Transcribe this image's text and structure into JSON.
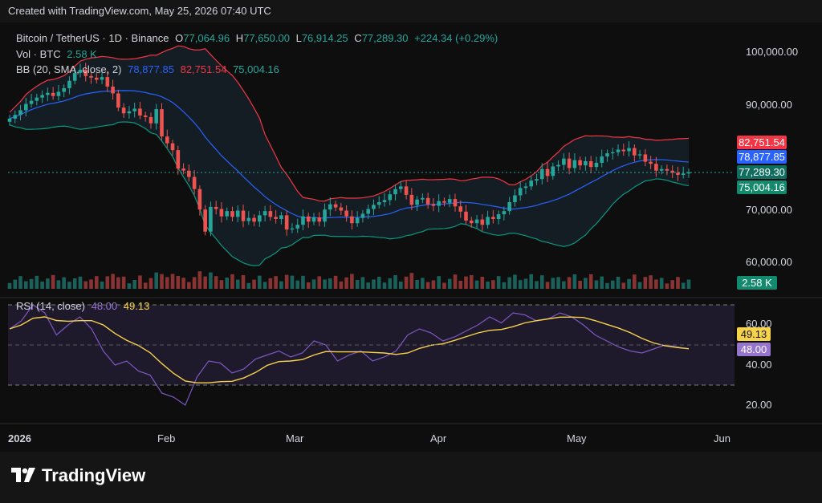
{
  "caption": "Created with TradingView.com, May 25, 2026 07:40 UTC",
  "symbol": {
    "title": "Bitcoin / TetherUS · 1D · Binance",
    "o_label": "O",
    "o": "77,064.96",
    "h_label": "H",
    "h": "77,650.00",
    "l_label": "L",
    "l": "76,914.25",
    "c_label": "C",
    "c": "77,289.30",
    "change": "+224.34 (+0.29%)"
  },
  "vol": {
    "label": "Vol · BTC",
    "value": "2.58 K"
  },
  "bb": {
    "label": "BB (20, SMA, close, 2)",
    "basis": "78,877.85",
    "upper": "82,751.54",
    "lower": "75,004.16"
  },
  "rsi": {
    "label": "RSI (14, close)",
    "rsi": "48.00",
    "ma": "49.13"
  },
  "price_tags": {
    "upper": "82,751.54",
    "basis": "78,877.85",
    "last": "77,289.30",
    "lower": "75,004.16",
    "volume": "2.58 K",
    "rsi_ma": "49.13",
    "rsi": "48.00"
  },
  "colors": {
    "up": "#26a69a",
    "down": "#ef5350",
    "basis": "#2962ff",
    "upper": "#f23645",
    "lower": "#089981",
    "rsi": "#7e57c2",
    "rsi_ma": "#f7d34b"
  },
  "logo_text": "TradingView",
  "chart_data": {
    "type": "candlestick",
    "price_axis": {
      "ticks": [
        "100,000.00",
        "90,000.00",
        "70,000.00",
        "60,000.00"
      ],
      "range": [
        57500,
        103000
      ]
    },
    "rsi_axis": {
      "ticks": [
        "60.00",
        "40.00",
        "20.00"
      ],
      "range": [
        14,
        78
      ],
      "bands": [
        30,
        70
      ]
    },
    "time_axis": [
      "2026",
      "Feb",
      "Mar",
      "Apr",
      "May",
      "Jun"
    ],
    "closes": [
      87500,
      88200,
      89100,
      90300,
      90900,
      91500,
      92000,
      92400,
      91800,
      92600,
      93300,
      94700,
      96200,
      96800,
      95600,
      95300,
      94900,
      95400,
      93600,
      92300,
      89600,
      88500,
      88900,
      89400,
      88100,
      87800,
      86600,
      89300,
      84100,
      82800,
      81500,
      78000,
      77600,
      76400,
      74100,
      70200,
      66000,
      70700,
      70300,
      68900,
      69900,
      68800,
      70000,
      68000,
      68600,
      67900,
      69100,
      69900,
      68800,
      68400,
      69100,
      66400,
      66600,
      67300,
      68900,
      67900,
      68700,
      67900,
      70200,
      71200,
      70600,
      70000,
      68900,
      67600,
      68600,
      69400,
      70300,
      71100,
      71600,
      72000,
      73100,
      74100,
      74600,
      73000,
      71100,
      72100,
      72400,
      71200,
      70900,
      71800,
      71500,
      72200,
      70800,
      69800,
      68100,
      67600,
      68300,
      67300,
      68800,
      68400,
      69300,
      69900,
      71600,
      72900,
      74300,
      74600,
      75700,
      76000,
      77900,
      76600,
      78400,
      78700,
      79900,
      78100,
      79600,
      78600,
      79400,
      78300,
      79100,
      80300,
      80900,
      81100,
      81600,
      81300,
      81900,
      80500,
      80700,
      79300,
      78900,
      77600,
      77900,
      77600,
      77200,
      76800,
      77064,
      77289
    ],
    "rsi_values": [
      58,
      62,
      70,
      66,
      55,
      60,
      64,
      58,
      47,
      40,
      42,
      37,
      35,
      26,
      24,
      20,
      34,
      42,
      41,
      36,
      38,
      43,
      45,
      47,
      44,
      46,
      52,
      50,
      42,
      45,
      47,
      42,
      44,
      47,
      55,
      58,
      56,
      52,
      54,
      57,
      60,
      64,
      61,
      66,
      65,
      62,
      63,
      66,
      64,
      60,
      55,
      52,
      49,
      47,
      46,
      48,
      50,
      49,
      48
    ]
  }
}
